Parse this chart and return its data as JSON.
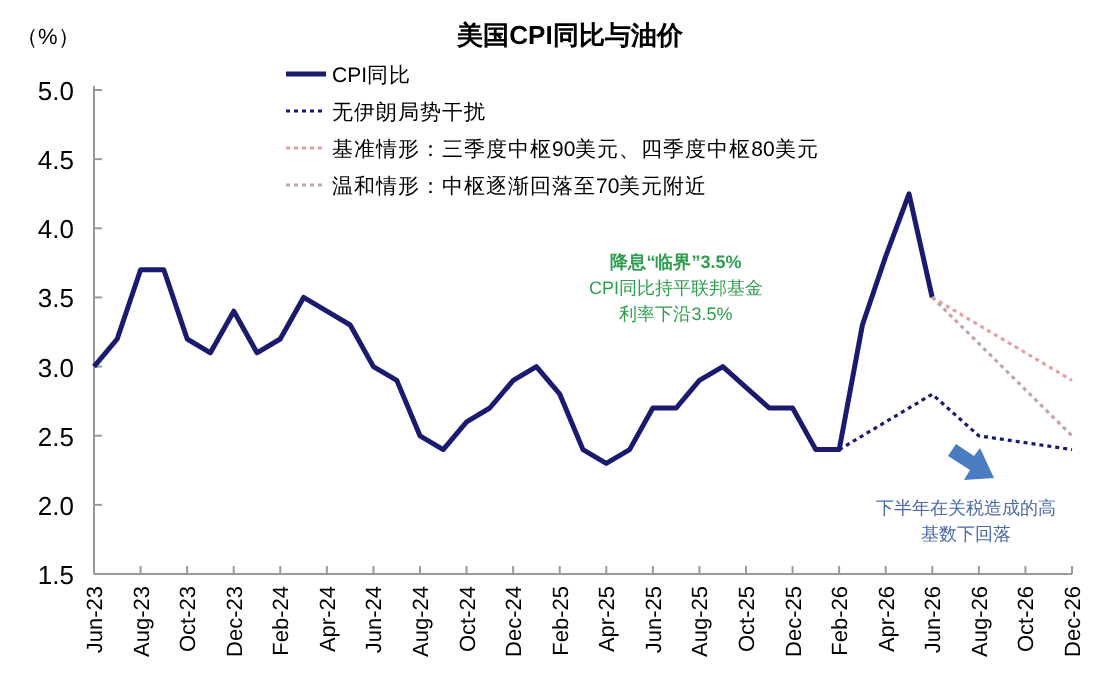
{
  "chart_data": {
    "type": "line",
    "title": "美国CPI同比与油价",
    "ylabel": "（%）",
    "xlim": [
      "2023-06",
      "2026-12"
    ],
    "xticks": [
      {
        "value": "2023-06",
        "label": "Jun-23"
      },
      {
        "value": "2023-08",
        "label": "Aug-23"
      },
      {
        "value": "2023-10",
        "label": "Oct-23"
      },
      {
        "value": "2023-12",
        "label": "Dec-23"
      },
      {
        "value": "2024-02",
        "label": "Feb-24"
      },
      {
        "value": "2024-04",
        "label": "Apr-24"
      },
      {
        "value": "2024-06",
        "label": "Jun-24"
      },
      {
        "value": "2024-08",
        "label": "Aug-24"
      },
      {
        "value": "2024-10",
        "label": "Oct-24"
      },
      {
        "value": "2024-12",
        "label": "Dec-24"
      },
      {
        "value": "2025-02",
        "label": "Feb-25"
      },
      {
        "value": "2025-04",
        "label": "Apr-25"
      },
      {
        "value": "2025-06",
        "label": "Jun-25"
      },
      {
        "value": "2025-08",
        "label": "Aug-25"
      },
      {
        "value": "2025-10",
        "label": "Oct-25"
      },
      {
        "value": "2025-12",
        "label": "Dec-25"
      },
      {
        "value": "2026-02",
        "label": "Feb-26"
      },
      {
        "value": "2026-04",
        "label": "Apr-26"
      },
      {
        "value": "2026-06",
        "label": "Jun-26"
      },
      {
        "value": "2026-08",
        "label": "Aug-26"
      },
      {
        "value": "2026-10",
        "label": "Oct-26"
      },
      {
        "value": "2026-12",
        "label": "Dec-26"
      }
    ],
    "ylim": [
      1.5,
      5.0
    ],
    "yticks": [
      {
        "value": 1.5,
        "label": "1.5"
      },
      {
        "value": 2.0,
        "label": "2.0"
      },
      {
        "value": 2.5,
        "label": "2.5"
      },
      {
        "value": 3.0,
        "label": "3.0"
      },
      {
        "value": 3.5,
        "label": "3.5"
      },
      {
        "value": 4.0,
        "label": "4.0"
      },
      {
        "value": 4.5,
        "label": "4.5"
      },
      {
        "value": 5.0,
        "label": "5.0"
      }
    ],
    "grid": false,
    "legend": "top",
    "marker": "none",
    "series": [
      {
        "name": "CPI同比",
        "color": "#1a1a6e",
        "line_style": "solid",
        "x": [
          "2023-06",
          "2023-07",
          "2023-08",
          "2023-09",
          "2023-10",
          "2023-11",
          "2023-12",
          "2024-01",
          "2024-02",
          "2024-03",
          "2024-04",
          "2024-05",
          "2024-06",
          "2024-07",
          "2024-08",
          "2024-09",
          "2024-10",
          "2024-11",
          "2024-12",
          "2025-01",
          "2025-02",
          "2025-03",
          "2025-04",
          "2025-05",
          "2025-06",
          "2025-07",
          "2025-08",
          "2025-09",
          "2025-10",
          "2025-11",
          "2025-12",
          "2026-01",
          "2026-02",
          "2026-03",
          "2026-04",
          "2026-05",
          "2026-06"
        ],
        "values": [
          3.0,
          3.2,
          3.7,
          3.7,
          3.2,
          3.1,
          3.4,
          3.1,
          3.2,
          3.5,
          3.4,
          3.3,
          3.0,
          2.9,
          2.5,
          2.4,
          2.6,
          2.7,
          2.9,
          3.0,
          2.8,
          2.4,
          2.3,
          2.4,
          2.7,
          2.7,
          2.9,
          3.0,
          2.85,
          2.7,
          2.7,
          2.4,
          2.4,
          3.3,
          3.8,
          4.25,
          3.5
        ]
      },
      {
        "name": "无伊朗局势干扰",
        "color": "#1a1a6e",
        "line_style": "dotted",
        "x": [
          "2026-02",
          "2026-06",
          "2026-08",
          "2026-12"
        ],
        "values": [
          2.4,
          2.8,
          2.5,
          2.4
        ]
      },
      {
        "name": "基准情形：三季度中枢90美元、四季度中枢80美元",
        "color": "#e3a3a3",
        "line_style": "dotted",
        "x": [
          "2026-06",
          "2026-12"
        ],
        "values": [
          3.5,
          2.9
        ]
      },
      {
        "name": "温和情形：中枢逐渐回落至70美元附近",
        "color": "#c2a6a6",
        "line_style": "dotted",
        "x": [
          "2026-06",
          "2026-12"
        ],
        "values": [
          3.5,
          2.5
        ]
      }
    ],
    "annotations": [
      "降息“临界”3.5%",
      "CPI同比持平联邦基金",
      "利率下沿3.5%",
      "下半年在关税造成的高",
      "基数下回落"
    ]
  }
}
